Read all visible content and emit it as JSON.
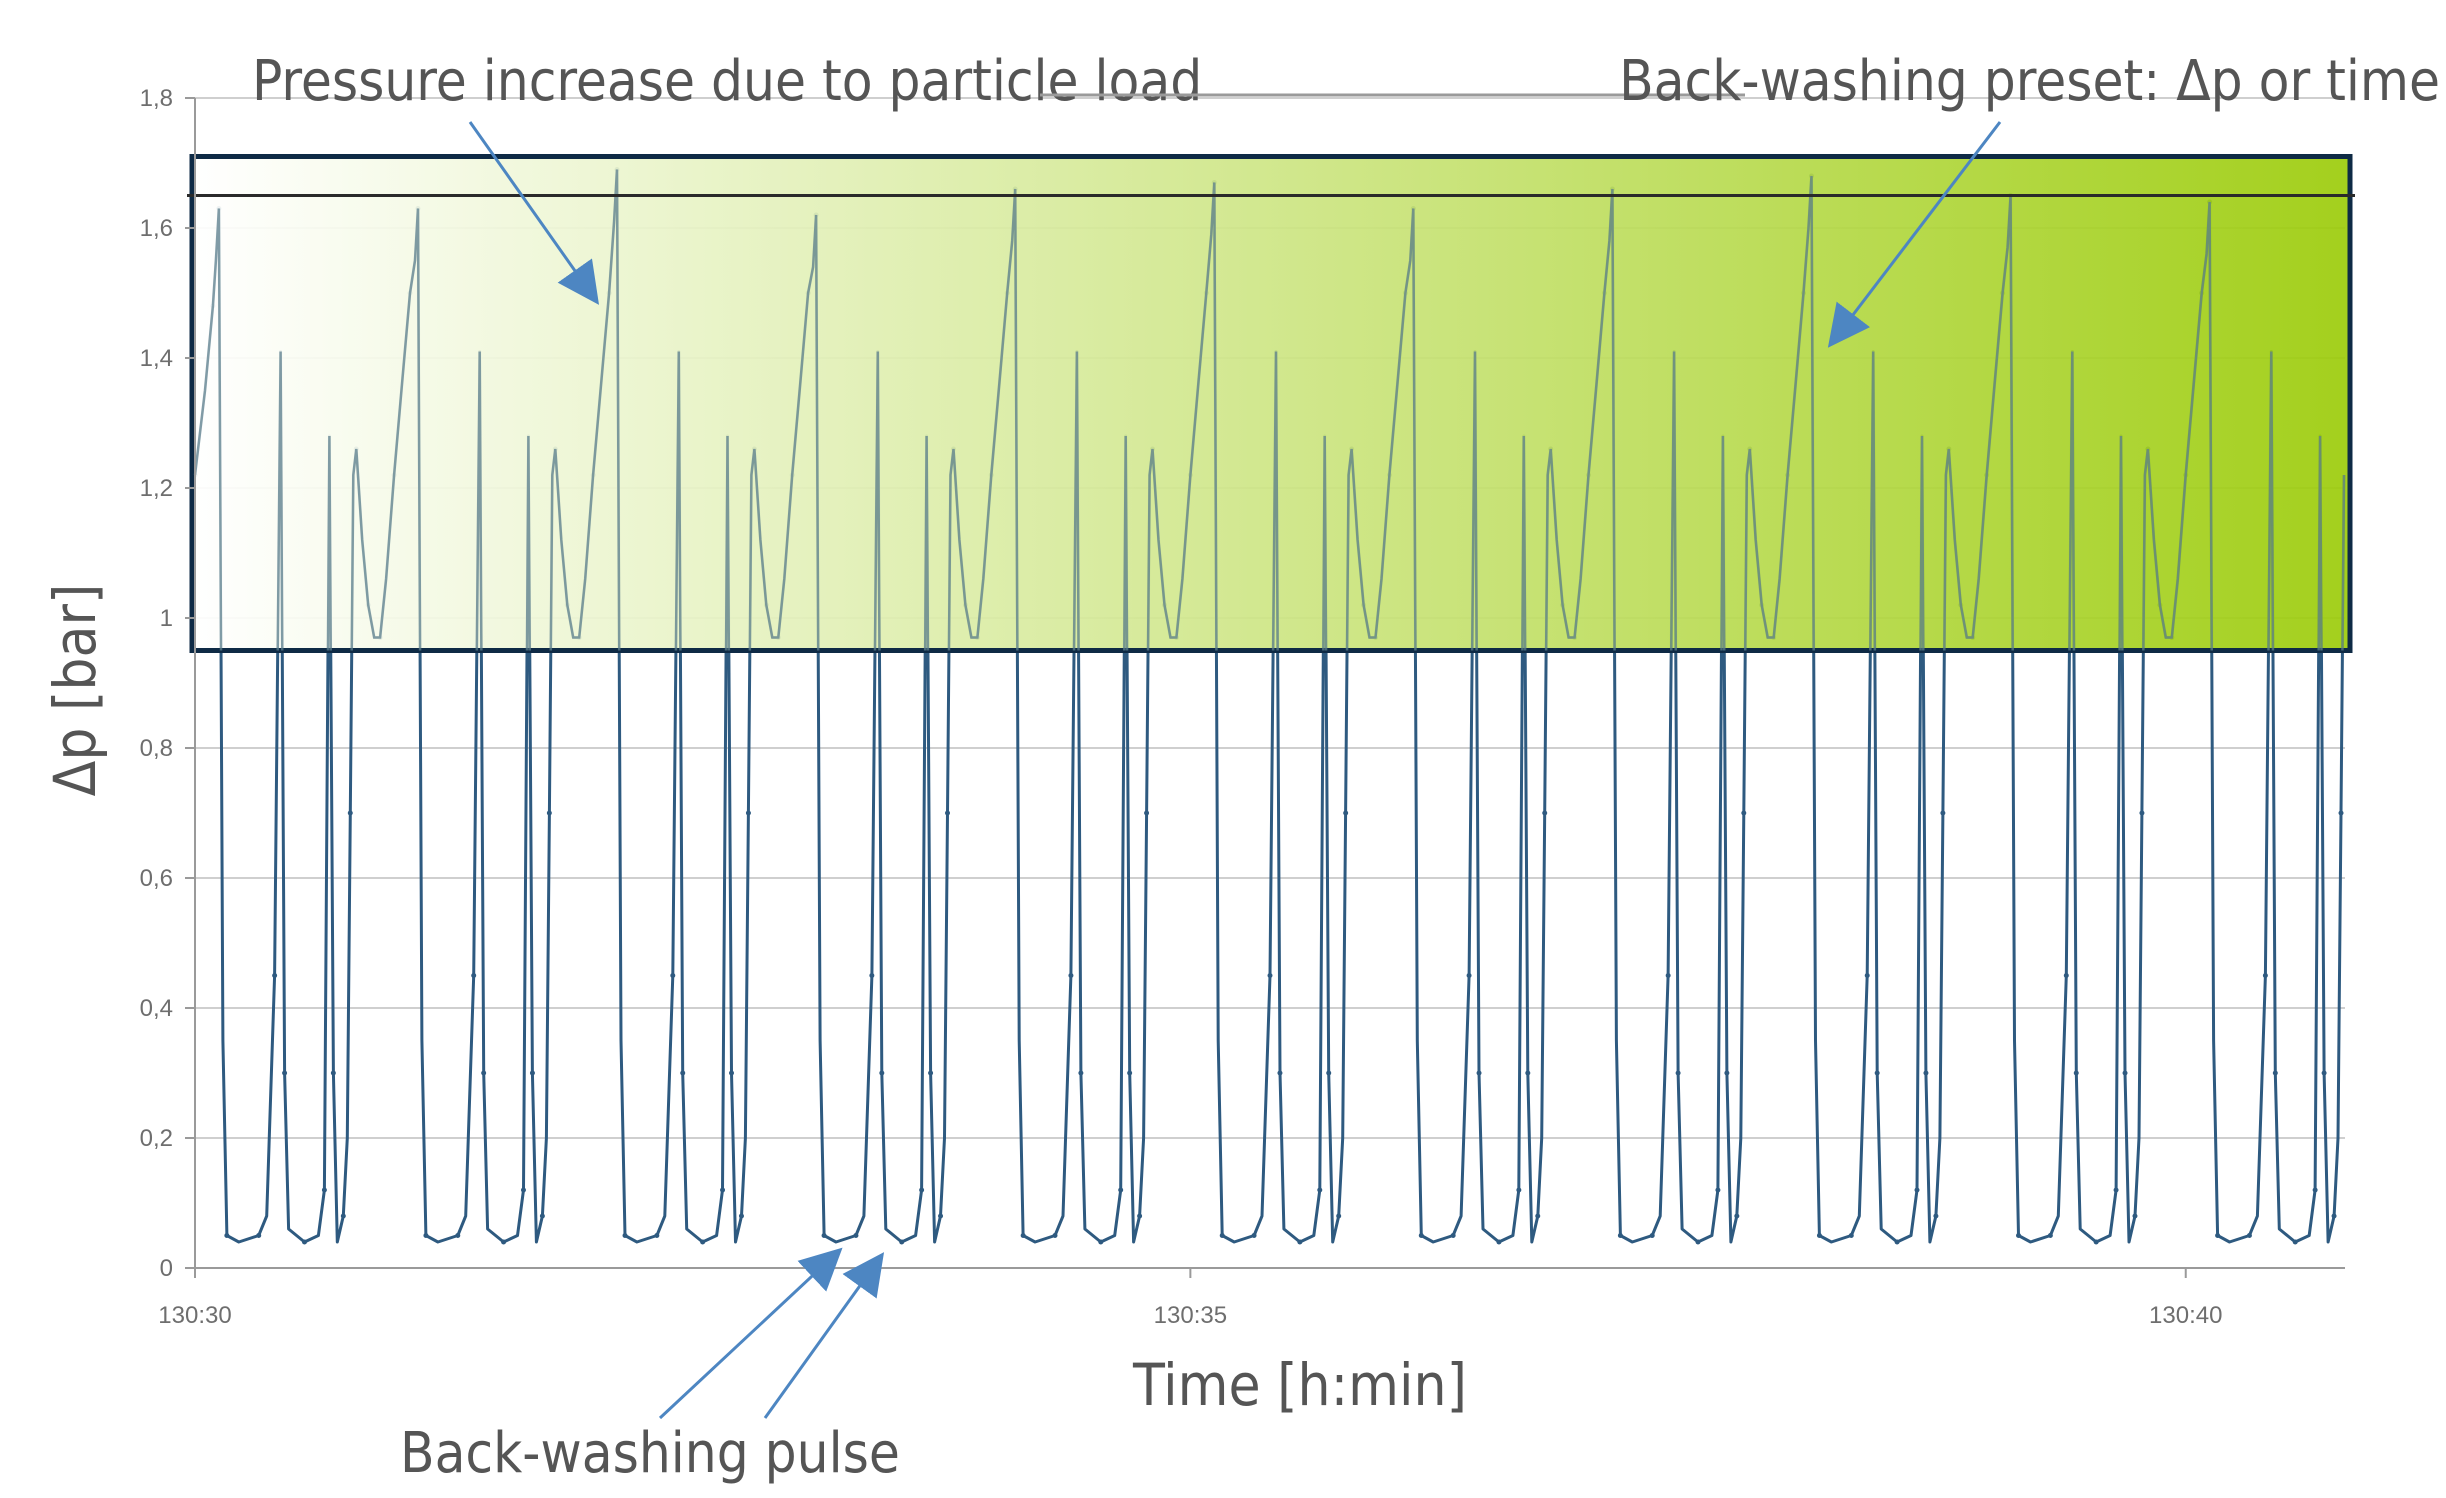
{
  "chart_data": {
    "type": "line",
    "xlabel": "Time [h:min]",
    "ylabel": "Δp [bar]",
    "x_ticks": [
      "130:30",
      "130:35",
      "130:40"
    ],
    "x_tick_minutes": [
      0,
      5,
      10
    ],
    "xlim": [
      0,
      10.8
    ],
    "y_ticks": [
      "0",
      "0,2",
      "0,4",
      "0,6",
      "0,8",
      "1",
      "1,2",
      "1,4",
      "1,6",
      "1,8"
    ],
    "ylim": [
      0,
      1.8
    ],
    "grid": true,
    "series": [
      {
        "line_color": "#2e5a80",
        "cycle_minutes": 1.0,
        "first_peak_minute": 0.12,
        "peaks": [
          1.63,
          1.63,
          1.69,
          1.62,
          1.66,
          1.67,
          1.63,
          1.66,
          1.68,
          1.65,
          1.64
        ],
        "baseline": 0.04,
        "trough_minimum": 0.97,
        "double_spikes_per_cycle": [
          1.41,
          1.28
        ]
      }
    ],
    "highlight_band": {
      "y_from": 0.95,
      "y_to": 1.71,
      "gradient_from": "#ffffff",
      "gradient_to": "#9ccc0a",
      "border_color": "#0e2a45"
    },
    "threshold_line": {
      "y": 1.65,
      "color": "#2a2a2a"
    },
    "annotations": [
      {
        "text": "Pressure increase due to particle load",
        "position": "top-left"
      },
      {
        "text": "Back-washing preset: Δp or time",
        "position": "top-right"
      },
      {
        "text": "Back-washing pulse",
        "position": "bottom-left"
      }
    ]
  }
}
